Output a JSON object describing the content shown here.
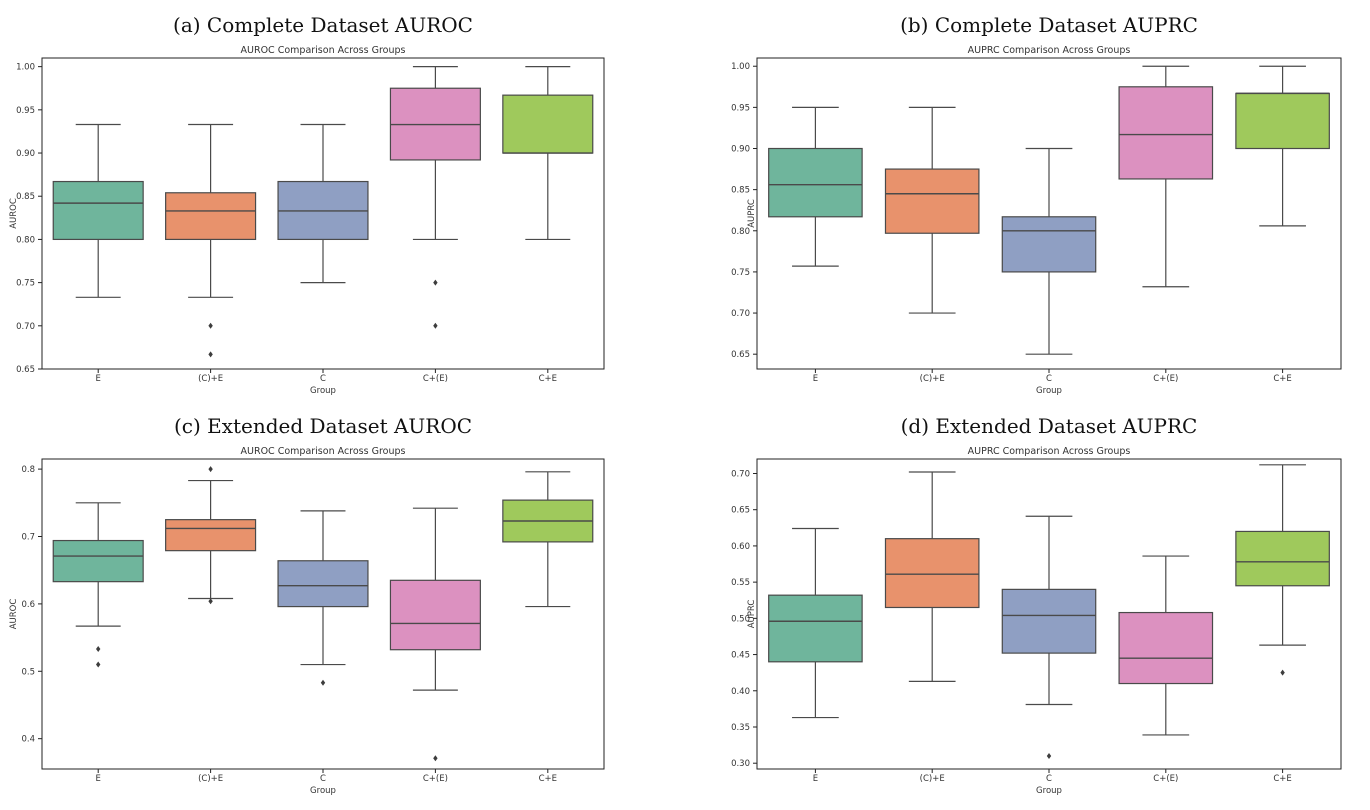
{
  "chart_data": [
    {
      "type": "box",
      "caption": "(a) Complete Dataset AUROC",
      "title": "AUROC Comparison Across Groups",
      "xlabel": "Group",
      "ylabel": "AUROC",
      "ylim": [
        0.65,
        1.01
      ],
      "yticks": [
        0.65,
        0.7,
        0.75,
        0.8,
        0.85,
        0.9,
        0.95,
        1.0
      ],
      "ytick_labels": [
        "0.65",
        "0.70",
        "0.75",
        "0.80",
        "0.85",
        "0.90",
        "0.95",
        "1.00"
      ],
      "categories": [
        "E",
        "(C)+E",
        "C",
        "C+(E)",
        "C+E"
      ],
      "boxes": [
        {
          "group": "E",
          "whisker_low": 0.733,
          "q1": 0.8,
          "median": 0.842,
          "q3": 0.867,
          "whisker_high": 0.933,
          "outliers": []
        },
        {
          "group": "(C)+E",
          "whisker_low": 0.733,
          "q1": 0.8,
          "median": 0.833,
          "q3": 0.854,
          "whisker_high": 0.933,
          "outliers": [
            0.7,
            0.667
          ]
        },
        {
          "group": "C",
          "whisker_low": 0.75,
          "q1": 0.8,
          "median": 0.833,
          "q3": 0.867,
          "whisker_high": 0.933,
          "outliers": []
        },
        {
          "group": "C+(E)",
          "whisker_low": 0.8,
          "q1": 0.892,
          "median": 0.933,
          "q3": 0.975,
          "whisker_high": 1.0,
          "outliers": [
            0.75,
            0.7
          ]
        },
        {
          "group": "C+E",
          "whisker_low": 0.8,
          "q1": 0.9,
          "median": 0.9,
          "q3": 0.967,
          "whisker_high": 1.0,
          "outliers": []
        }
      ]
    },
    {
      "type": "box",
      "caption": "(b) Complete Dataset AUPRC",
      "title": "AUPRC Comparison Across Groups",
      "xlabel": "Group",
      "ylabel": "AUPRC",
      "ylim": [
        0.632,
        1.01
      ],
      "yticks": [
        0.65,
        0.7,
        0.75,
        0.8,
        0.85,
        0.9,
        0.95,
        1.0
      ],
      "ytick_labels": [
        "0.65",
        "0.70",
        "0.75",
        "0.80",
        "0.85",
        "0.90",
        "0.95",
        "1.00"
      ],
      "categories": [
        "E",
        "(C)+E",
        "C",
        "C+(E)",
        "C+E"
      ],
      "boxes": [
        {
          "group": "E",
          "whisker_low": 0.757,
          "q1": 0.817,
          "median": 0.856,
          "q3": 0.9,
          "whisker_high": 0.95,
          "outliers": []
        },
        {
          "group": "(C)+E",
          "whisker_low": 0.7,
          "q1": 0.797,
          "median": 0.845,
          "q3": 0.875,
          "whisker_high": 0.95,
          "outliers": []
        },
        {
          "group": "C",
          "whisker_low": 0.65,
          "q1": 0.75,
          "median": 0.8,
          "q3": 0.817,
          "whisker_high": 0.9,
          "outliers": []
        },
        {
          "group": "C+(E)",
          "whisker_low": 0.732,
          "q1": 0.863,
          "median": 0.917,
          "q3": 0.975,
          "whisker_high": 1.0,
          "outliers": []
        },
        {
          "group": "C+E",
          "whisker_low": 0.806,
          "q1": 0.9,
          "median": 0.967,
          "q3": 0.967,
          "whisker_high": 1.0,
          "outliers": []
        }
      ]
    },
    {
      "type": "box",
      "caption": "(c) Extended Dataset AUROC",
      "title": "AUROC Comparison Across Groups",
      "xlabel": "Group",
      "ylabel": "AUROC",
      "ylim": [
        0.355,
        0.815
      ],
      "yticks": [
        0.4,
        0.5,
        0.6,
        0.7,
        0.8
      ],
      "ytick_labels": [
        "0.4",
        "0.5",
        "0.6",
        "0.7",
        "0.8"
      ],
      "categories": [
        "E",
        "(C)+E",
        "C",
        "C+(E)",
        "C+E"
      ],
      "boxes": [
        {
          "group": "E",
          "whisker_low": 0.567,
          "q1": 0.633,
          "median": 0.671,
          "q3": 0.694,
          "whisker_high": 0.75,
          "outliers": [
            0.533,
            0.51
          ]
        },
        {
          "group": "(C)+E",
          "whisker_low": 0.608,
          "q1": 0.679,
          "median": 0.712,
          "q3": 0.725,
          "whisker_high": 0.783,
          "outliers": [
            0.8,
            0.604
          ]
        },
        {
          "group": "C",
          "whisker_low": 0.51,
          "q1": 0.596,
          "median": 0.627,
          "q3": 0.664,
          "whisker_high": 0.738,
          "outliers": [
            0.483
          ]
        },
        {
          "group": "C+(E)",
          "whisker_low": 0.472,
          "q1": 0.532,
          "median": 0.571,
          "q3": 0.635,
          "whisker_high": 0.742,
          "outliers": [
            0.371
          ]
        },
        {
          "group": "C+E",
          "whisker_low": 0.596,
          "q1": 0.692,
          "median": 0.723,
          "q3": 0.754,
          "whisker_high": 0.796,
          "outliers": []
        }
      ]
    },
    {
      "type": "box",
      "caption": "(d) Extended Dataset AUPRC",
      "title": "AUPRC Comparison Across Groups",
      "xlabel": "Group",
      "ylabel": "AUPRC",
      "ylim": [
        0.292,
        0.72
      ],
      "yticks": [
        0.3,
        0.35,
        0.4,
        0.45,
        0.5,
        0.55,
        0.6,
        0.65,
        0.7
      ],
      "ytick_labels": [
        "0.30",
        "0.35",
        "0.40",
        "0.45",
        "0.50",
        "0.55",
        "0.60",
        "0.65",
        "0.70"
      ],
      "categories": [
        "E",
        "(C)+E",
        "C",
        "C+(E)",
        "C+E"
      ],
      "boxes": [
        {
          "group": "E",
          "whisker_low": 0.363,
          "q1": 0.44,
          "median": 0.496,
          "q3": 0.532,
          "whisker_high": 0.624,
          "outliers": []
        },
        {
          "group": "(C)+E",
          "whisker_low": 0.413,
          "q1": 0.515,
          "median": 0.561,
          "q3": 0.61,
          "whisker_high": 0.702,
          "outliers": []
        },
        {
          "group": "C",
          "whisker_low": 0.381,
          "q1": 0.452,
          "median": 0.504,
          "q3": 0.54,
          "whisker_high": 0.641,
          "outliers": [
            0.31
          ]
        },
        {
          "group": "C+(E)",
          "whisker_low": 0.339,
          "q1": 0.41,
          "median": 0.445,
          "q3": 0.508,
          "whisker_high": 0.586,
          "outliers": []
        },
        {
          "group": "C+E",
          "whisker_low": 0.463,
          "q1": 0.545,
          "median": 0.578,
          "q3": 0.62,
          "whisker_high": 0.712,
          "outliers": [
            0.425
          ]
        }
      ]
    }
  ],
  "colors": {
    "box_fills": [
      "#6fb59c",
      "#e8926c",
      "#8f9fc3",
      "#dc91c0",
      "#9fc95c"
    ],
    "line": "#4a4a4a",
    "axes": "#222222"
  }
}
